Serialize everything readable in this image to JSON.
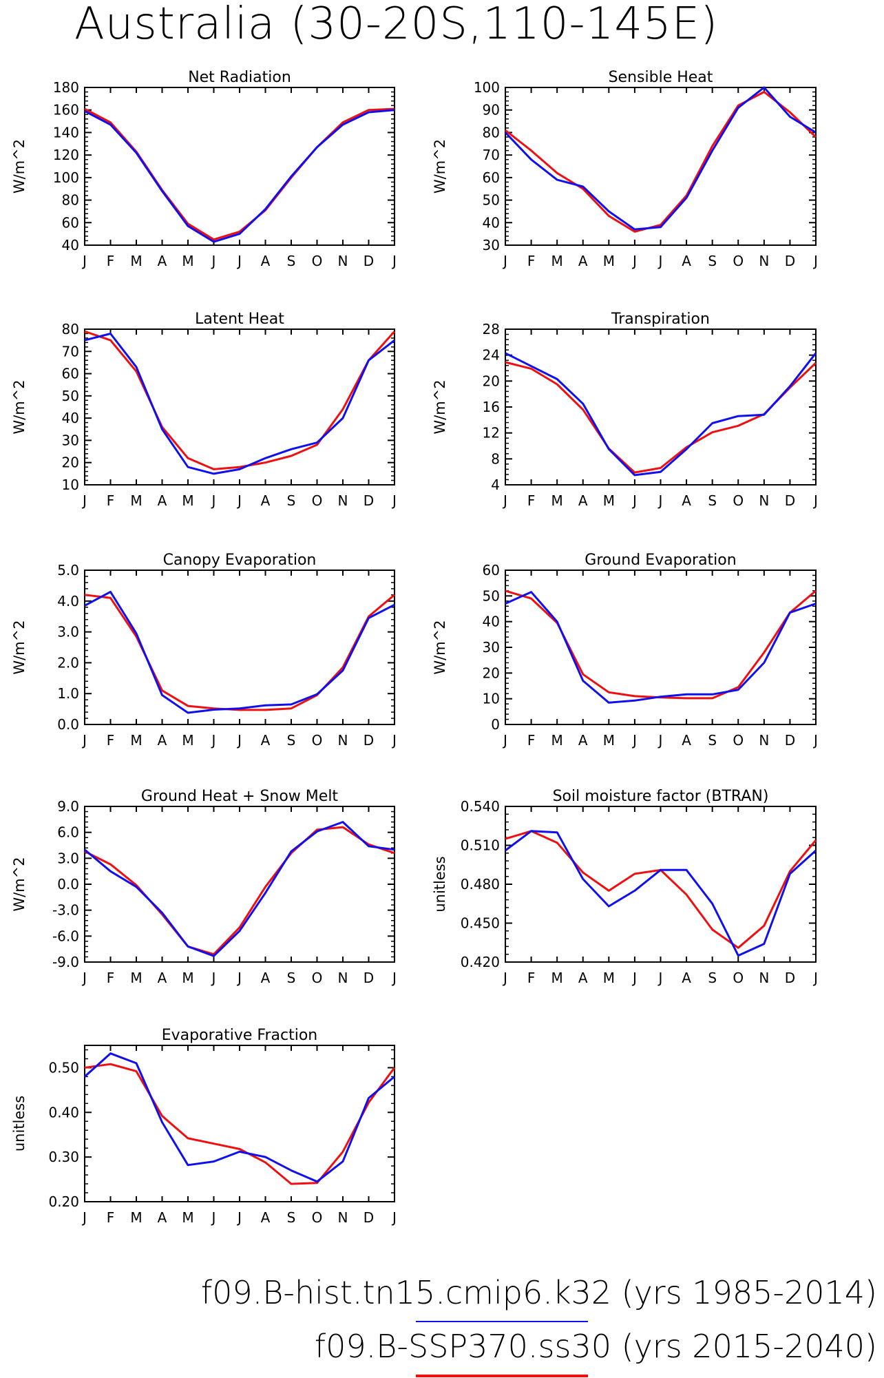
{
  "title": "Australia (30-20S,110-145E)",
  "colors": {
    "case1": "#1010ee",
    "case2": "#ee1010"
  },
  "legend": [
    {
      "label": "f09.B-hist.tn15.cmip6.k32",
      "years": "(yrs 1985-2014)",
      "color": "#1010ee"
    },
    {
      "label": "f09.B-SSP370.ss30",
      "years": "(yrs 2015-2040)",
      "color": "#ee1010"
    }
  ],
  "chart_data": [
    {
      "type": "line",
      "title": "Net Radiation",
      "ylabel": "W/m^2",
      "categories": [
        "J",
        "F",
        "M",
        "A",
        "M",
        "J",
        "J",
        "A",
        "S",
        "O",
        "N",
        "D",
        "J"
      ],
      "ylim": [
        40,
        180
      ],
      "yticks": [
        "40",
        "60",
        "80",
        "100",
        "120",
        "140",
        "160",
        "180"
      ],
      "ytick_values": [
        40,
        60,
        80,
        100,
        120,
        140,
        160,
        180
      ],
      "series": [
        {
          "values": [
            159,
            147,
            122,
            88,
            57,
            43,
            50,
            72,
            101,
            127,
            147,
            158,
            160
          ]
        },
        {
          "values": [
            161,
            149,
            123,
            89,
            59,
            45,
            52,
            71,
            100,
            127,
            149,
            160,
            161
          ]
        }
      ]
    },
    {
      "type": "line",
      "title": "Sensible Heat",
      "ylabel": "W/m^2",
      "categories": [
        "J",
        "F",
        "M",
        "A",
        "M",
        "J",
        "J",
        "A",
        "S",
        "O",
        "N",
        "D",
        "J"
      ],
      "ylim": [
        30,
        100
      ],
      "yticks": [
        "30",
        "40",
        "50",
        "60",
        "70",
        "80",
        "90",
        "100"
      ],
      "ytick_values": [
        30,
        40,
        50,
        60,
        70,
        80,
        90,
        100
      ],
      "series": [
        {
          "values": [
            80,
            68,
            59,
            56,
            45,
            37,
            38,
            51,
            72,
            91,
            100,
            87,
            80
          ]
        },
        {
          "values": [
            81,
            72,
            62,
            55,
            43,
            36,
            39,
            52,
            74,
            92,
            98,
            89,
            78
          ]
        }
      ]
    },
    {
      "type": "line",
      "title": "Latent Heat",
      "ylabel": "W/m^2",
      "categories": [
        "J",
        "F",
        "M",
        "A",
        "M",
        "J",
        "J",
        "A",
        "S",
        "O",
        "N",
        "D",
        "J"
      ],
      "ylim": [
        10,
        80
      ],
      "yticks": [
        "10",
        "20",
        "30",
        "40",
        "50",
        "60",
        "70",
        "80"
      ],
      "ytick_values": [
        10,
        20,
        30,
        40,
        50,
        60,
        70,
        80
      ],
      "series": [
        {
          "values": [
            75,
            78,
            63,
            35,
            18,
            15,
            17,
            22,
            26,
            29,
            40,
            66,
            75
          ]
        },
        {
          "values": [
            79,
            75,
            61,
            36,
            22,
            17,
            18,
            20,
            23,
            28,
            44,
            66,
            79
          ]
        }
      ]
    },
    {
      "type": "line",
      "title": "Transpiration",
      "ylabel": "W/m^2",
      "categories": [
        "J",
        "F",
        "M",
        "A",
        "M",
        "J",
        "J",
        "A",
        "S",
        "O",
        "N",
        "D",
        "J"
      ],
      "ylim": [
        4,
        28
      ],
      "yticks": [
        "4",
        "8",
        "12",
        "16",
        "20",
        "24",
        "28"
      ],
      "ytick_values": [
        4,
        8,
        12,
        16,
        20,
        24,
        28
      ],
      "series": [
        {
          "values": [
            24.3,
            22.3,
            20.3,
            16.5,
            9.5,
            5.5,
            6.0,
            9.5,
            13.5,
            14.6,
            14.8,
            19.2,
            24.3
          ]
        },
        {
          "values": [
            22.9,
            21.9,
            19.5,
            15.6,
            9.6,
            5.9,
            6.6,
            9.8,
            12.1,
            13.1,
            14.9,
            19.0,
            22.8
          ]
        }
      ]
    },
    {
      "type": "line",
      "title": "Canopy Evaporation",
      "ylabel": "W/m^2",
      "categories": [
        "J",
        "F",
        "M",
        "A",
        "M",
        "J",
        "J",
        "A",
        "S",
        "O",
        "N",
        "D",
        "J"
      ],
      "ylim": [
        0,
        5
      ],
      "yticks": [
        "0.0",
        "1.0",
        "2.0",
        "3.0",
        "4.0",
        "5.0"
      ],
      "ytick_values": [
        0,
        1,
        2,
        3,
        4,
        5
      ],
      "series": [
        {
          "values": [
            3.85,
            4.3,
            2.95,
            0.95,
            0.38,
            0.48,
            0.52,
            0.62,
            0.65,
            0.98,
            1.75,
            3.45,
            3.88
          ]
        },
        {
          "values": [
            4.2,
            4.1,
            2.85,
            1.1,
            0.6,
            0.52,
            0.47,
            0.47,
            0.52,
            0.95,
            1.85,
            3.5,
            4.2
          ]
        }
      ]
    },
    {
      "type": "line",
      "title": "Ground Evaporation",
      "ylabel": "W/m^2",
      "categories": [
        "J",
        "F",
        "M",
        "A",
        "M",
        "J",
        "J",
        "A",
        "S",
        "O",
        "N",
        "D",
        "J"
      ],
      "ylim": [
        0,
        60
      ],
      "yticks": [
        "0",
        "10",
        "20",
        "30",
        "40",
        "50",
        "60"
      ],
      "ytick_values": [
        0,
        10,
        20,
        30,
        40,
        50,
        60
      ],
      "series": [
        {
          "values": [
            47,
            51.5,
            40,
            17,
            8.5,
            9.3,
            10.8,
            11.7,
            11.7,
            13.5,
            24,
            43.5,
            47
          ]
        },
        {
          "values": [
            52,
            49,
            39.5,
            19.5,
            12.5,
            11,
            10.5,
            10.2,
            10.2,
            14.5,
            28,
            43.5,
            52
          ]
        }
      ]
    },
    {
      "type": "line",
      "title": "Ground Heat + Snow Melt",
      "ylabel": "W/m^2",
      "categories": [
        "J",
        "F",
        "M",
        "A",
        "M",
        "J",
        "J",
        "A",
        "S",
        "O",
        "N",
        "D",
        "J"
      ],
      "ylim": [
        -9,
        9
      ],
      "yticks": [
        "-9.0",
        "-6.0",
        "-3.0",
        "0.0",
        "3.0",
        "6.0",
        "9.0"
      ],
      "ytick_values": [
        -9,
        -6,
        -3,
        0,
        3,
        6,
        9
      ],
      "series": [
        {
          "values": [
            4.0,
            1.5,
            -0.3,
            -3.3,
            -7.2,
            -8.3,
            -5.4,
            -1.0,
            3.8,
            6.1,
            7.2,
            4.4,
            4.0
          ]
        },
        {
          "values": [
            3.8,
            2.3,
            -0.1,
            -3.5,
            -7.2,
            -8.1,
            -5.0,
            -0.3,
            3.6,
            6.3,
            6.6,
            4.6,
            3.6
          ]
        }
      ]
    },
    {
      "type": "line",
      "title": "Soil moisture factor (BTRAN)",
      "ylabel": "unitless",
      "categories": [
        "J",
        "F",
        "M",
        "A",
        "M",
        "J",
        "J",
        "A",
        "S",
        "O",
        "N",
        "D",
        "J"
      ],
      "ylim": [
        0.42,
        0.54
      ],
      "yticks": [
        "0.420",
        "0.450",
        "0.480",
        "0.510",
        "0.540"
      ],
      "ytick_values": [
        0.42,
        0.45,
        0.48,
        0.51,
        0.54
      ],
      "series": [
        {
          "values": [
            0.506,
            0.521,
            0.52,
            0.484,
            0.463,
            0.475,
            0.491,
            0.491,
            0.465,
            0.425,
            0.434,
            0.488,
            0.506
          ]
        },
        {
          "values": [
            0.515,
            0.521,
            0.512,
            0.489,
            0.475,
            0.488,
            0.491,
            0.472,
            0.445,
            0.431,
            0.448,
            0.49,
            0.514
          ]
        }
      ]
    },
    {
      "type": "line",
      "title": "Evaporative Fraction",
      "ylabel": "unitless",
      "categories": [
        "J",
        "F",
        "M",
        "A",
        "M",
        "J",
        "J",
        "A",
        "S",
        "O",
        "N",
        "D",
        "J"
      ],
      "ylim": [
        0.2,
        0.55
      ],
      "yticks": [
        "0.20",
        "0.30",
        "0.40",
        "0.50"
      ],
      "ytick_values": [
        0.2,
        0.3,
        0.4,
        0.5
      ],
      "series": [
        {
          "values": [
            0.48,
            0.532,
            0.51,
            0.378,
            0.282,
            0.29,
            0.312,
            0.3,
            0.27,
            0.245,
            0.29,
            0.432,
            0.48
          ]
        },
        {
          "values": [
            0.5,
            0.508,
            0.492,
            0.392,
            0.342,
            0.33,
            0.318,
            0.288,
            0.24,
            0.242,
            0.312,
            0.422,
            0.5
          ]
        }
      ]
    }
  ]
}
